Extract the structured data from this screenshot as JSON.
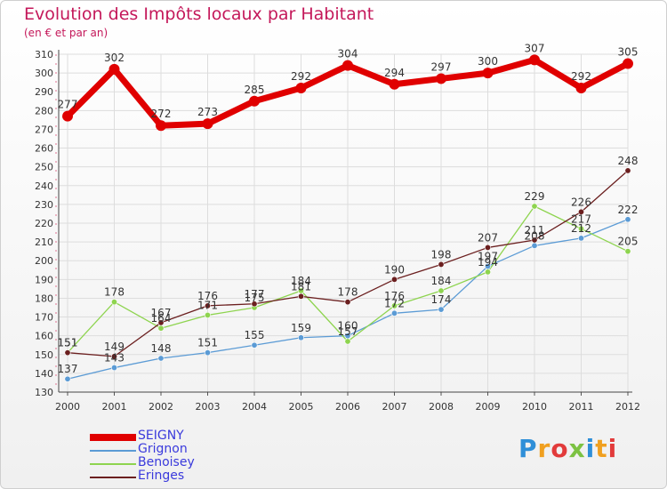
{
  "header": {
    "title": "Evolution des Impôts locaux par Habitant",
    "subtitle": "(en € et par an)"
  },
  "logo": {
    "text": "Proxiti",
    "letters": [
      {
        "ch": "P",
        "color": "#2f8fd8"
      },
      {
        "ch": "r",
        "color": "#f0a020"
      },
      {
        "ch": "o",
        "color": "#e23b3b"
      },
      {
        "ch": "x",
        "color": "#7cc242"
      },
      {
        "ch": "i",
        "color": "#2f8fd8"
      },
      {
        "ch": "t",
        "color": "#f0a020"
      },
      {
        "ch": "i",
        "color": "#e23b3b"
      }
    ]
  },
  "chart_data": {
    "type": "line",
    "title": "Evolution des Impôts locaux par Habitant",
    "subtitle": "(en € et par an)",
    "x": [
      "2000",
      "2001",
      "2002",
      "2003",
      "2004",
      "2005",
      "2006",
      "2007",
      "2008",
      "2009",
      "2010",
      "2011",
      "2012"
    ],
    "ylim": [
      130,
      310
    ],
    "yticks": [
      130,
      140,
      150,
      160,
      170,
      180,
      190,
      200,
      210,
      220,
      230,
      240,
      250,
      260,
      270,
      280,
      290,
      300,
      310
    ],
    "grid": true,
    "legend": "bottom-left",
    "series": [
      {
        "name": "SEIGNY",
        "color": "#e00000",
        "values": [
          277,
          302,
          272,
          273,
          285,
          292,
          304,
          294,
          297,
          300,
          307,
          292,
          305
        ]
      },
      {
        "name": "Grignon",
        "color": "#5b9bd5",
        "values": [
          137,
          143,
          148,
          151,
          155,
          159,
          160,
          172,
          174,
          197,
          208,
          212,
          222
        ]
      },
      {
        "name": "Benoisey",
        "color": "#8ed44f",
        "values": [
          151,
          178,
          164,
          171,
          175,
          184,
          157,
          176,
          184,
          194,
          229,
          217,
          205
        ]
      },
      {
        "name": "Eringes",
        "color": "#6b1f1f",
        "values": [
          151,
          149,
          167,
          176,
          177,
          181,
          178,
          190,
          198,
          207,
          211,
          226,
          248
        ]
      }
    ]
  }
}
